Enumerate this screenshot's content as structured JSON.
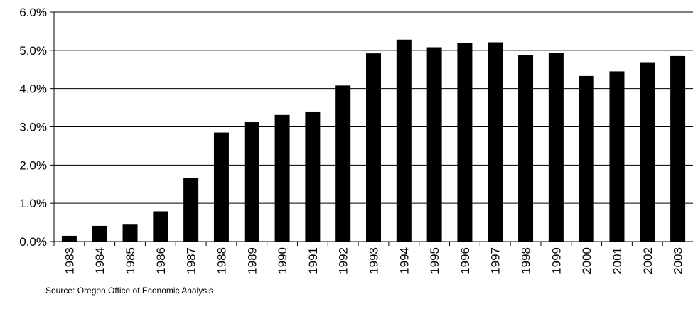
{
  "chart_data": {
    "type": "bar",
    "categories": [
      "1983",
      "1984",
      "1985",
      "1986",
      "1987",
      "1988",
      "1989",
      "1990",
      "1991",
      "1992",
      "1993",
      "1994",
      "1995",
      "1996",
      "1997",
      "1998",
      "1999",
      "2000",
      "2001",
      "2002",
      "2003"
    ],
    "values": [
      0.15,
      0.41,
      0.46,
      0.79,
      1.66,
      2.85,
      3.12,
      3.31,
      3.4,
      4.08,
      4.92,
      5.28,
      5.08,
      5.2,
      5.21,
      4.88,
      4.93,
      4.33,
      4.45,
      4.69,
      4.85
    ],
    "y_ticks": [
      "0.0%",
      "1.0%",
      "2.0%",
      "3.0%",
      "4.0%",
      "5.0%",
      "6.0%"
    ],
    "ylim": [
      0,
      6
    ],
    "grid": "horizontal",
    "bar_color": "#000000",
    "title": "",
    "xlabel": "",
    "ylabel": ""
  },
  "source_note": "Source: Oregon Office of Economic Analysis"
}
